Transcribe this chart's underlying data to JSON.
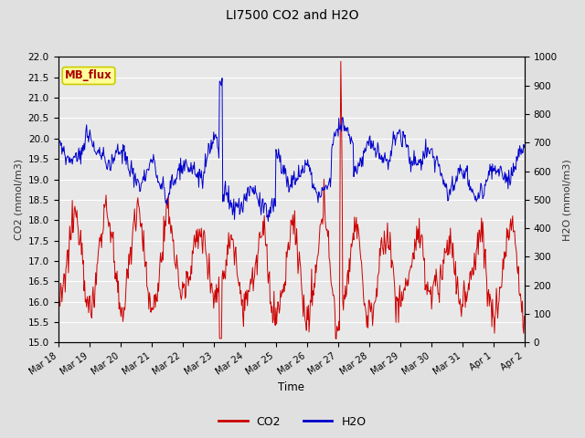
{
  "title": "LI7500 CO2 and H2O",
  "xlabel": "Time",
  "ylabel_left": "CO2 (mmol/m3)",
  "ylabel_right": "H2O (mmol/m3)",
  "ylim_left": [
    15.0,
    22.0
  ],
  "ylim_right": [
    0,
    1000
  ],
  "yticks_left": [
    15.0,
    15.5,
    16.0,
    16.5,
    17.0,
    17.5,
    18.0,
    18.5,
    19.0,
    19.5,
    20.0,
    20.5,
    21.0,
    21.5,
    22.0
  ],
  "yticks_right": [
    0,
    100,
    200,
    300,
    400,
    500,
    600,
    700,
    800,
    900,
    1000
  ],
  "xtick_labels": [
    "Mar 18",
    "Mar 19",
    "Mar 20",
    "Mar 21",
    "Mar 22",
    "Mar 23",
    "Mar 24",
    "Mar 25",
    "Mar 26",
    "Mar 27",
    "Mar 28",
    "Mar 29",
    "Mar 30",
    "Mar 31",
    "Apr 1",
    "Apr 2"
  ],
  "fig_bg_color": "#e0e0e0",
  "plot_bg_color": "#e8e8e8",
  "grid_color": "#ffffff",
  "line_color_co2": "#cc0000",
  "line_color_h2o": "#0000cc",
  "legend_label_co2": "CO2",
  "legend_label_h2o": "H2O",
  "mb_flux_label": "MB_flux",
  "mb_flux_bg": "#ffff99",
  "mb_flux_border": "#cccc00"
}
